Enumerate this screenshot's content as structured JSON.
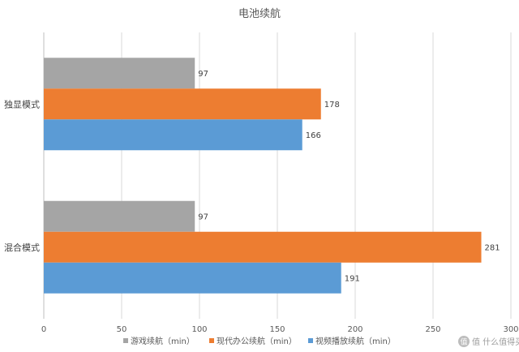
{
  "chart_data": {
    "type": "bar",
    "orientation": "horizontal",
    "title": "电池续航",
    "categories": [
      "独显模式",
      "混合模式"
    ],
    "series": [
      {
        "name": "游戏续航（min）",
        "values": [
          97,
          97
        ],
        "color": "#a5a5a5"
      },
      {
        "name": "现代办公续航（min）",
        "values": [
          178,
          281
        ],
        "color": "#ed7d31"
      },
      {
        "name": "视频播放续航（min）",
        "values": [
          166,
          191
        ],
        "color": "#5b9bd5"
      }
    ],
    "xlim": [
      0,
      300
    ],
    "xticks": [
      "0",
      "50",
      "100",
      "150",
      "200",
      "250",
      "300"
    ],
    "grid": true,
    "legend": "bottom"
  },
  "watermark": "值 什么值得买"
}
